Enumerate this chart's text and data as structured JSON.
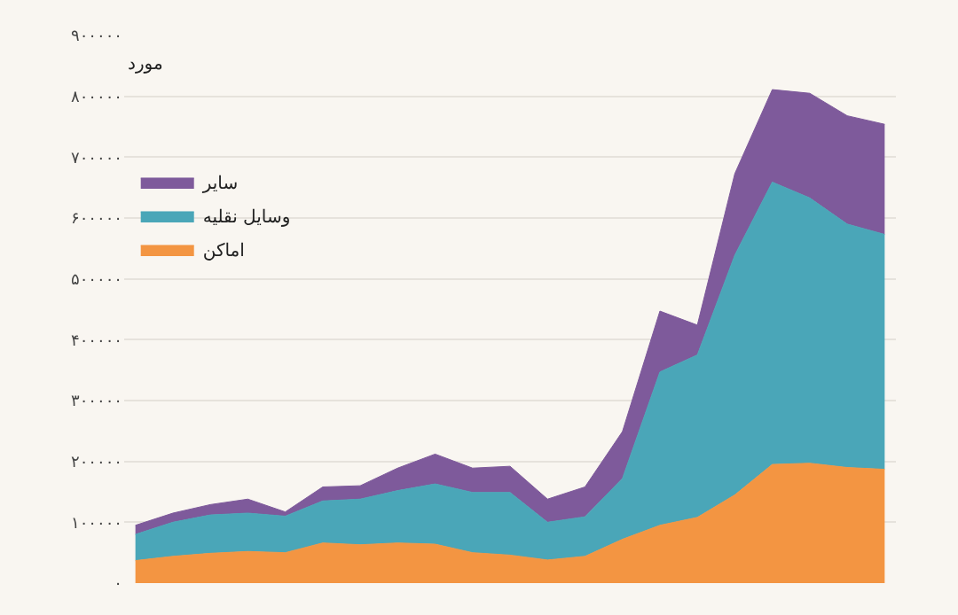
{
  "chart_data": {
    "type": "area",
    "stacked": true,
    "ylabel": "مورد",
    "categories": [
      null,
      null,
      null,
      null,
      null,
      null,
      null,
      null,
      null,
      null,
      null,
      null,
      null,
      null,
      null,
      null,
      null,
      null,
      null,
      null,
      null
    ],
    "series": [
      {
        "name": "اماکن",
        "color": "#f39542",
        "values": [
          37000,
          44000,
          49000,
          52000,
          50000,
          66000,
          63000,
          66000,
          64000,
          50000,
          46000,
          38000,
          44000,
          72000,
          95000,
          108000,
          145000,
          195000,
          197000,
          190000,
          187000
        ]
      },
      {
        "name": "وسایل نقلیه",
        "color": "#4aa6b8",
        "values": [
          43000,
          56000,
          63000,
          63000,
          60000,
          69000,
          75000,
          86000,
          99000,
          99000,
          103000,
          62000,
          65000,
          100000,
          252000,
          267000,
          394000,
          464000,
          436000,
          400000,
          386000
        ]
      },
      {
        "name": "سایر",
        "color": "#7e5a9b",
        "values": [
          15000,
          15000,
          17000,
          23000,
          7000,
          23000,
          22000,
          37000,
          49000,
          40000,
          43000,
          38000,
          49000,
          77000,
          100000,
          49000,
          134000,
          152000,
          172000,
          178000,
          181000
        ]
      }
    ],
    "ylim": [
      0,
      900000
    ],
    "yticks": [
      {
        "value": 0,
        "label": "۰"
      },
      {
        "value": 100000,
        "label": "۱۰۰۰۰۰"
      },
      {
        "value": 200000,
        "label": "۲۰۰۰۰۰"
      },
      {
        "value": 300000,
        "label": "۳۰۰۰۰۰"
      },
      {
        "value": 400000,
        "label": "۴۰۰۰۰۰"
      },
      {
        "value": 500000,
        "label": "۵۰۰۰۰۰"
      },
      {
        "value": 600000,
        "label": "۶۰۰۰۰۰"
      },
      {
        "value": 700000,
        "label": "۷۰۰۰۰۰"
      },
      {
        "value": 800000,
        "label": "۸۰۰۰۰۰"
      },
      {
        "value": 900000,
        "label": "۹۰۰۰۰۰"
      }
    ],
    "grid": "y",
    "legend": "top left",
    "tick_labels": "y"
  }
}
